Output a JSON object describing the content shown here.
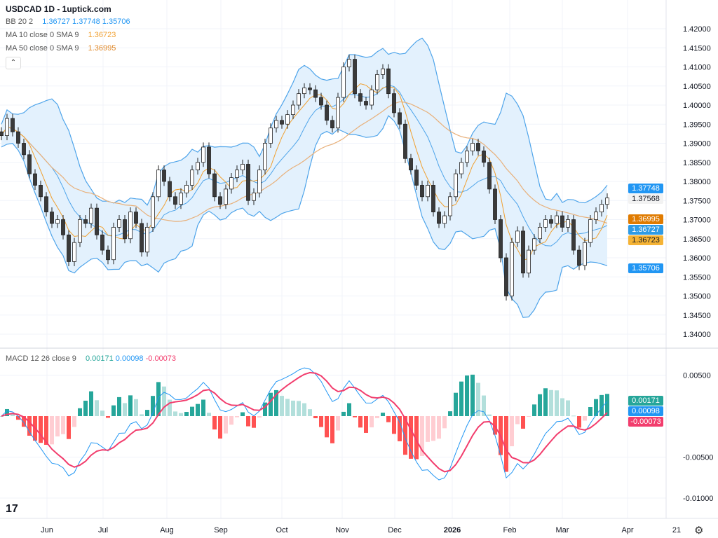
{
  "header": {
    "title": "USDCAD 1D - 1uptick.com",
    "legends": [
      {
        "label": "BB 20 2",
        "values": [
          "1.36727",
          "1.37748",
          "1.35706"
        ],
        "color": "#2196f3"
      },
      {
        "label": "MA 10 close 0 SMA 9",
        "values": [
          "1.36723"
        ],
        "color": "#f0a030"
      },
      {
        "label": "MA 50 close 0 SMA 9",
        "values": [
          "1.36995"
        ],
        "color": "#e0892a"
      }
    ],
    "macd_legend": {
      "label": "MACD 12 26 close 9",
      "values": [
        "0.00171",
        "0.00098",
        "-0.00073"
      ],
      "colors": [
        "#26a69a",
        "#2196f3",
        "#f23d6d"
      ]
    }
  },
  "price_tags": [
    {
      "value": "1.37748",
      "bg": "#2196f3",
      "fg": "#ffffff"
    },
    {
      "value": "1.37568",
      "bg": "#f2f2f2",
      "fg": "#131722"
    },
    {
      "value": "1.36995",
      "bg": "#e07b00",
      "fg": "#ffffff"
    },
    {
      "value": "1.36727",
      "bg": "#2e9be6",
      "fg": "#ffffff"
    },
    {
      "value": "1.36723",
      "bg": "#f5b335",
      "fg": "#131722"
    },
    {
      "value": "1.35706",
      "bg": "#2196f3",
      "fg": "#ffffff"
    }
  ],
  "macd_tags": [
    {
      "value": "0.00171",
      "bg": "#26a69a",
      "fg": "#ffffff"
    },
    {
      "value": "0.00098",
      "bg": "#2196f3",
      "fg": "#ffffff"
    },
    {
      "value": "-0.00073",
      "bg": "#f23d6d",
      "fg": "#ffffff"
    }
  ],
  "chart_data": [
    {
      "type": "candlestick",
      "title": "USDCAD 1D",
      "ylim": [
        1.335,
        1.425
      ],
      "y_ticks": [
        "1.42000",
        "1.41500",
        "1.41000",
        "1.40500",
        "1.40000",
        "1.39500",
        "1.39000",
        "1.38500",
        "1.38000",
        "1.37500",
        "1.37000",
        "1.36500",
        "1.36000",
        "1.35500",
        "1.35000",
        "1.34500",
        "1.34000"
      ],
      "x_ticks": [
        "Jun",
        "Jul",
        "Aug",
        "Sep",
        "Oct",
        "Nov",
        "Dec",
        "2026",
        "Feb",
        "Mar",
        "Apr",
        "21"
      ],
      "closes": [
        1.392,
        1.3965,
        1.393,
        1.39,
        1.387,
        1.382,
        1.379,
        1.376,
        1.372,
        1.369,
        1.37,
        1.366,
        1.359,
        1.364,
        1.37,
        1.369,
        1.373,
        1.366,
        1.362,
        1.3595,
        1.368,
        1.37,
        1.365,
        1.372,
        1.369,
        1.3615,
        1.368,
        1.376,
        1.383,
        1.38,
        1.376,
        1.374,
        1.377,
        1.379,
        1.383,
        1.385,
        1.389,
        1.382,
        1.376,
        1.374,
        1.378,
        1.381,
        1.383,
        1.3845,
        1.375,
        1.377,
        1.383,
        1.39,
        1.394,
        1.396,
        1.395,
        1.3975,
        1.4,
        1.403,
        1.4045,
        1.404,
        1.402,
        1.4,
        1.396,
        1.394,
        1.402,
        1.41,
        1.412,
        1.403,
        1.401,
        1.4,
        1.404,
        1.408,
        1.4095,
        1.403,
        1.398,
        1.395,
        1.386,
        1.383,
        1.379,
        1.376,
        1.379,
        1.372,
        1.369,
        1.371,
        1.376,
        1.382,
        1.385,
        1.388,
        1.39,
        1.388,
        1.385,
        1.378,
        1.37,
        1.36,
        1.35,
        1.364,
        1.367,
        1.356,
        1.362,
        1.365,
        1.368,
        1.37,
        1.369,
        1.371,
        1.368,
        1.37,
        1.362,
        1.358,
        1.364,
        1.37,
        1.372,
        1.374,
        1.37568
      ],
      "indicators": [
        "Bollinger Bands 20 2",
        "MA 10",
        "MA 50"
      ],
      "colors": {
        "up": "#ffffff",
        "down": "#3a3a3a",
        "band_fill": "#e3f1fd",
        "band_line": "#4ea4ea",
        "ma10": "#f0a030",
        "ma50": "#e8b07a"
      },
      "grid": true
    },
    {
      "type": "macd",
      "title": "MACD 12 26 close 9",
      "y_ticks": [
        "0.00500",
        "-0.00500",
        "-0.01000"
      ],
      "ylim": [
        -0.0118,
        0.0085
      ],
      "colors": {
        "macd": "#2196f3",
        "signal": "#f23d6d",
        "hist_up_strong": "#26a69a",
        "hist_up_weak": "#b2dfdb",
        "hist_down_strong": "#ff5252",
        "hist_down_weak": "#ffcdd2"
      }
    }
  ]
}
